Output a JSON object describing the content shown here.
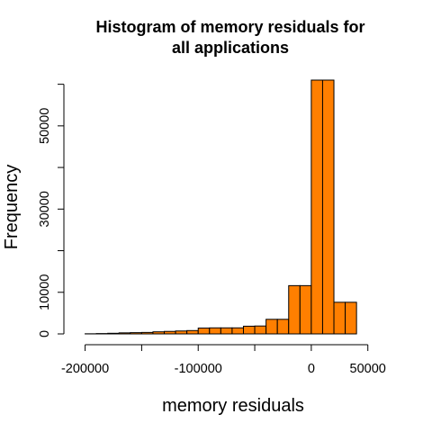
{
  "chart_data": {
    "type": "bar",
    "title_lines": [
      "Histogram of memory residuals for",
      "all applications"
    ],
    "xlabel": "memory residuals",
    "ylabel": "Frequency",
    "bin_width": 10000,
    "bins": [
      {
        "start": -200000,
        "end": -190000,
        "count": 30
      },
      {
        "start": -190000,
        "end": -180000,
        "count": 80
      },
      {
        "start": -180000,
        "end": -170000,
        "count": 150
      },
      {
        "start": -170000,
        "end": -160000,
        "count": 250
      },
      {
        "start": -160000,
        "end": -150000,
        "count": 300
      },
      {
        "start": -150000,
        "end": -140000,
        "count": 350
      },
      {
        "start": -140000,
        "end": -130000,
        "count": 500
      },
      {
        "start": -130000,
        "end": -120000,
        "count": 600
      },
      {
        "start": -120000,
        "end": -110000,
        "count": 700
      },
      {
        "start": -110000,
        "end": -100000,
        "count": 800
      },
      {
        "start": -100000,
        "end": -90000,
        "count": 1400
      },
      {
        "start": -90000,
        "end": -80000,
        "count": 1450
      },
      {
        "start": -80000,
        "end": -70000,
        "count": 1450
      },
      {
        "start": -70000,
        "end": -60000,
        "count": 1450
      },
      {
        "start": -60000,
        "end": -50000,
        "count": 1850
      },
      {
        "start": -50000,
        "end": -40000,
        "count": 1900
      },
      {
        "start": -40000,
        "end": -30000,
        "count": 3500
      },
      {
        "start": -30000,
        "end": -20000,
        "count": 3500
      },
      {
        "start": -20000,
        "end": -10000,
        "count": 11600
      },
      {
        "start": -10000,
        "end": 0,
        "count": 11600
      },
      {
        "start": 0,
        "end": 10000,
        "count": 61000
      },
      {
        "start": 10000,
        "end": 20000,
        "count": 61000
      },
      {
        "start": 20000,
        "end": 30000,
        "count": 7600
      },
      {
        "start": 30000,
        "end": 40000,
        "count": 7600
      }
    ],
    "x_ticks": [
      -200000,
      -150000,
      -100000,
      -50000,
      0,
      50000
    ],
    "x_tick_labels": [
      "-200000",
      "",
      "-100000",
      "",
      "0",
      "50000"
    ],
    "xlim": [
      -210000,
      55000
    ],
    "y_ticks": [
      0,
      10000,
      20000,
      30000,
      40000,
      50000,
      60000
    ],
    "y_tick_labels": [
      "0",
      "10000",
      "",
      "30000",
      "",
      "50000",
      ""
    ],
    "ylim": [
      0,
      61000
    ],
    "bar_color": "#ff7f00",
    "grid": false
  }
}
